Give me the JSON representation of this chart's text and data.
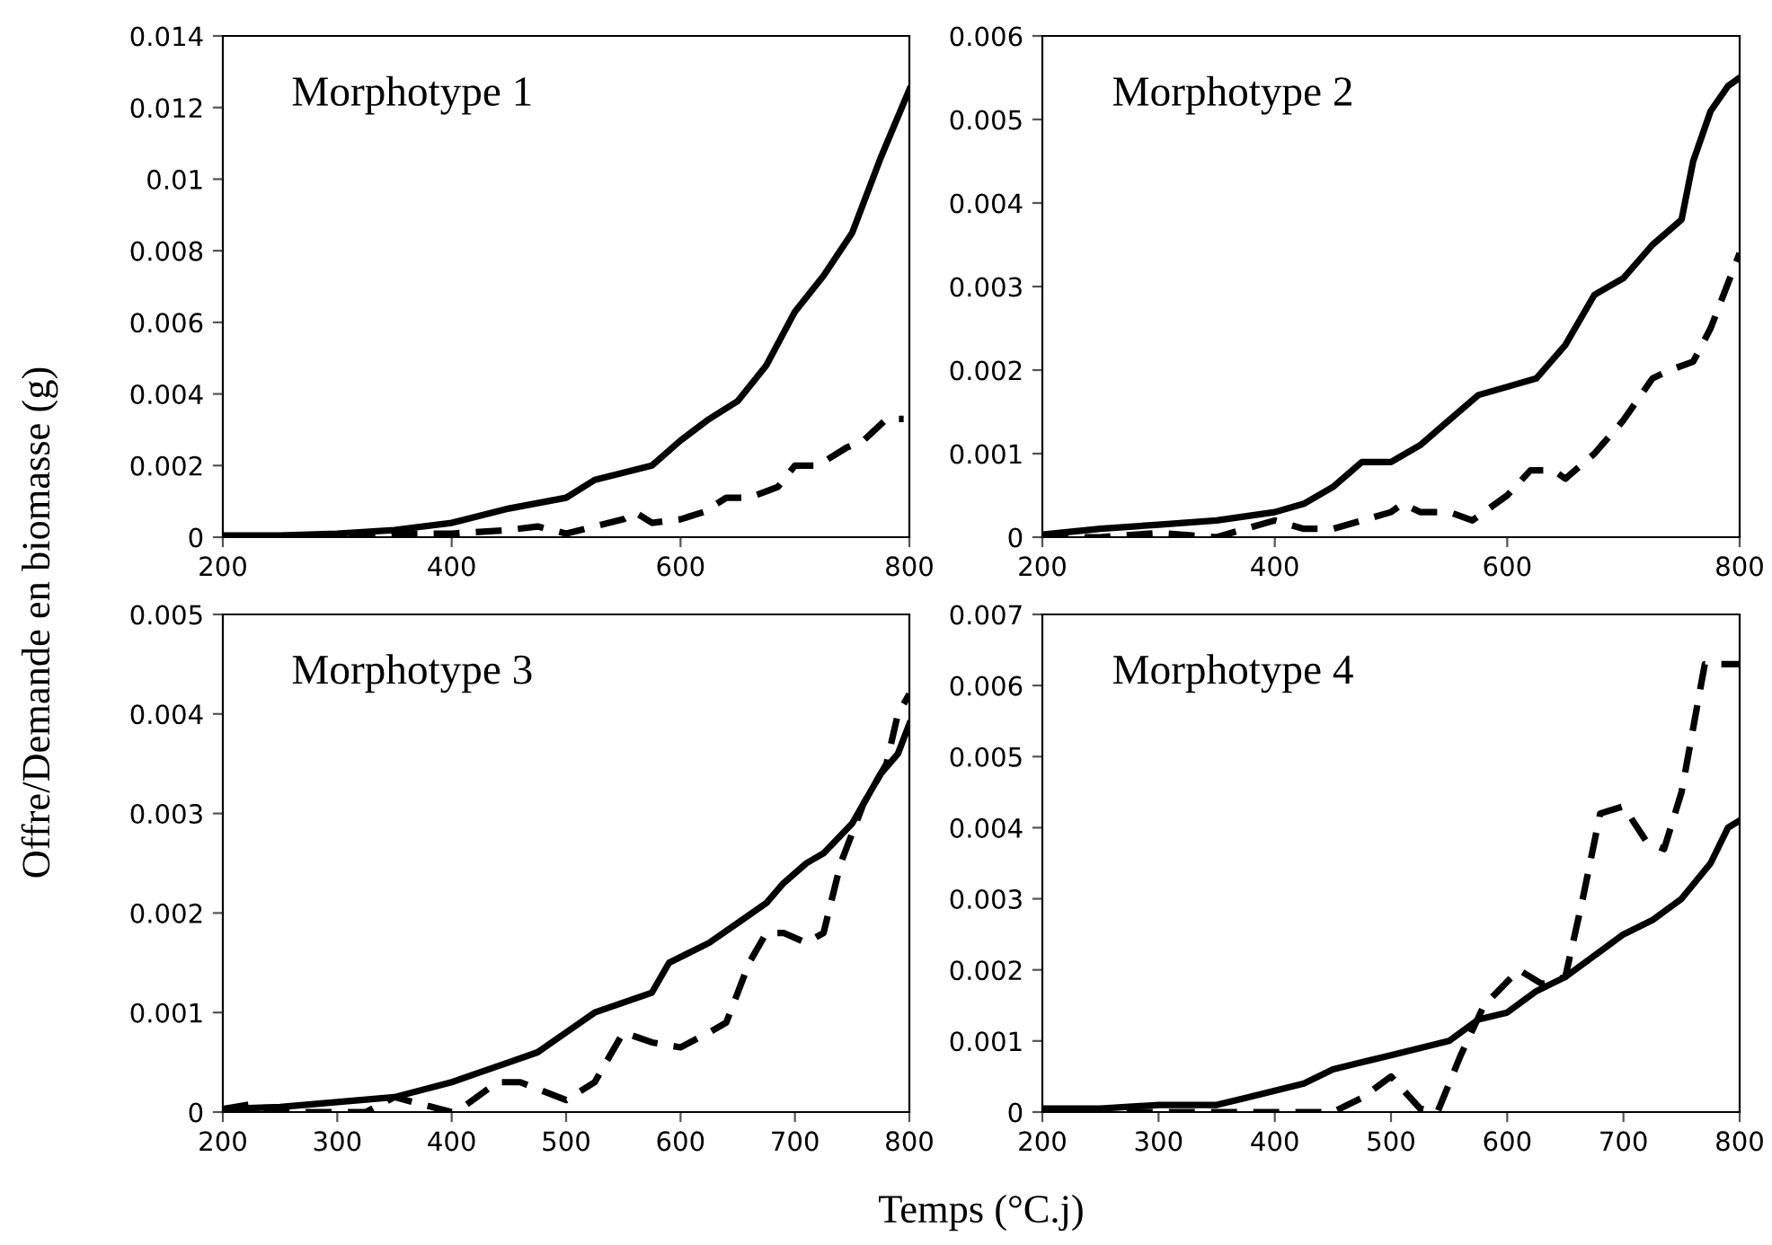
{
  "chart_data": [
    {
      "type": "line",
      "title": "Morphotype 1",
      "ylabel": "Offre/Demande en biomasse (g)",
      "xlim": [
        200,
        800
      ],
      "xticks": [
        200,
        400,
        600,
        800
      ],
      "ylim": [
        0,
        0.014
      ],
      "yticks": [
        0,
        0.002,
        0.004,
        0.006,
        0.008,
        {
          "value": 0.01,
          "label": "0.01"
        },
        0.012,
        0.014
      ],
      "grid": false,
      "legend": false,
      "series": [
        {
          "color": "#000000",
          "line_style": "solid",
          "x": [
            200,
            250,
            300,
            350,
            400,
            450,
            500,
            525,
            550,
            575,
            600,
            625,
            650,
            675,
            700,
            725,
            750,
            775,
            800
          ],
          "values": [
            5e-05,
            5e-05,
            0.0001,
            0.0002,
            0.0004,
            0.0008,
            0.0011,
            0.0016,
            0.0018,
            0.002,
            0.0027,
            0.0033,
            0.0038,
            0.0048,
            0.0063,
            0.0073,
            0.0085,
            0.0106,
            0.0125
          ]
        },
        {
          "color": "#000000",
          "line_style": "dashed",
          "x": [
            200,
            300,
            350,
            400,
            450,
            475,
            500,
            525,
            550,
            560,
            575,
            600,
            620,
            640,
            660,
            685,
            700,
            720,
            745,
            760,
            780,
            795
          ],
          "values": [
            0,
            0,
            0.0001,
            0.0001,
            0.0002,
            0.0003,
            0.0001,
            0.0003,
            0.0005,
            0.0007,
            0.0004,
            0.0005,
            0.0007,
            0.0011,
            0.0011,
            0.0014,
            0.002,
            0.002,
            0.0025,
            0.0027,
            0.0033,
            0.0033
          ]
        }
      ]
    },
    {
      "type": "line",
      "title": "Morphotype 2",
      "xlim": [
        200,
        800
      ],
      "xticks": [
        200,
        400,
        600,
        800
      ],
      "ylim": [
        0,
        0.006
      ],
      "yticks": [
        0,
        0.001,
        0.002,
        0.003,
        0.004,
        0.005,
        0.006
      ],
      "grid": false,
      "legend": false,
      "series": [
        {
          "color": "#000000",
          "line_style": "solid",
          "x": [
            200,
            250,
            300,
            350,
            400,
            425,
            450,
            475,
            500,
            525,
            550,
            575,
            600,
            625,
            650,
            675,
            700,
            725,
            750,
            760,
            775,
            790,
            800
          ],
          "values": [
            3e-05,
            0.0001,
            0.00015,
            0.0002,
            0.0003,
            0.0004,
            0.0006,
            0.0009,
            0.0009,
            0.0011,
            0.0014,
            0.0017,
            0.0018,
            0.0019,
            0.0023,
            0.0029,
            0.0031,
            0.0035,
            0.0038,
            0.0045,
            0.0051,
            0.0054,
            0.0055
          ]
        },
        {
          "color": "#000000",
          "line_style": "dashed",
          "x": [
            200,
            250,
            300,
            350,
            375,
            400,
            425,
            450,
            475,
            500,
            510,
            525,
            550,
            570,
            600,
            620,
            640,
            650,
            675,
            700,
            725,
            740,
            760,
            775,
            800
          ],
          "values": [
            0,
            0,
            5e-05,
            0,
            0.0001,
            0.0002,
            0.0001,
            0.0001,
            0.0002,
            0.0003,
            0.0004,
            0.0003,
            0.0003,
            0.0002,
            0.0005,
            0.0008,
            0.0008,
            0.0007,
            0.001,
            0.0014,
            0.0019,
            0.002,
            0.0021,
            0.0025,
            0.0034
          ]
        }
      ]
    },
    {
      "type": "line",
      "title": "Morphotype 3",
      "xlabel": "Temps (°C.j)",
      "xlim": [
        200,
        800
      ],
      "xticks": [
        200,
        300,
        400,
        500,
        600,
        700,
        800
      ],
      "ylim": [
        0,
        0.005
      ],
      "yticks": [
        0,
        0.001,
        0.002,
        0.003,
        0.004,
        0.005
      ],
      "grid": false,
      "legend": false,
      "series": [
        {
          "color": "#000000",
          "line_style": "solid",
          "x": [
            200,
            250,
            300,
            350,
            400,
            425,
            450,
            475,
            500,
            525,
            550,
            575,
            590,
            625,
            650,
            675,
            690,
            710,
            725,
            750,
            775,
            790,
            800
          ],
          "values": [
            3e-05,
            5e-05,
            0.0001,
            0.00015,
            0.0003,
            0.0004,
            0.0005,
            0.0006,
            0.0008,
            0.001,
            0.0011,
            0.0012,
            0.0015,
            0.0017,
            0.0019,
            0.0021,
            0.0023,
            0.0025,
            0.0026,
            0.0029,
            0.0034,
            0.0036,
            0.0039
          ]
        },
        {
          "color": "#000000",
          "line_style": "dashed",
          "x": [
            200,
            225,
            250,
            300,
            325,
            350,
            400,
            410,
            440,
            460,
            500,
            525,
            550,
            575,
            600,
            625,
            640,
            660,
            675,
            690,
            710,
            725,
            740,
            760,
            780,
            790,
            800
          ],
          "values": [
            3e-05,
            8e-05,
            0,
            0,
            0,
            0.00015,
            0,
            5e-05,
            0.0003,
            0.0003,
            0.00012,
            0.0003,
            0.0008,
            0.0007,
            0.00065,
            0.0008,
            0.0009,
            0.0015,
            0.0018,
            0.0018,
            0.0017,
            0.0018,
            0.0025,
            0.0031,
            0.0035,
            0.004,
            0.0042
          ]
        }
      ]
    },
    {
      "type": "line",
      "title": "Morphotype 4",
      "xlim": [
        200,
        800
      ],
      "xticks": [
        200,
        300,
        400,
        500,
        600,
        700,
        800
      ],
      "ylim": [
        0,
        0.007
      ],
      "yticks": [
        0,
        0.001,
        0.002,
        0.003,
        0.004,
        0.005,
        0.006,
        0.007
      ],
      "grid": false,
      "legend": false,
      "series": [
        {
          "color": "#000000",
          "line_style": "solid",
          "x": [
            200,
            250,
            300,
            350,
            375,
            400,
            425,
            450,
            475,
            500,
            525,
            550,
            575,
            600,
            625,
            650,
            675,
            700,
            725,
            750,
            775,
            790,
            800
          ],
          "values": [
            5e-05,
            5e-05,
            0.0001,
            0.0001,
            0.0002,
            0.0003,
            0.0004,
            0.0006,
            0.0007,
            0.0008,
            0.0009,
            0.001,
            0.0013,
            0.0014,
            0.0017,
            0.0019,
            0.0022,
            0.0025,
            0.0027,
            0.003,
            0.0035,
            0.004,
            0.0041
          ]
        },
        {
          "color": "#000000",
          "line_style": "dashed",
          "x": [
            200,
            275,
            300,
            400,
            450,
            475,
            500,
            525,
            540,
            560,
            580,
            610,
            630,
            650,
            665,
            680,
            700,
            720,
            735,
            750,
            770,
            800
          ],
          "values": [
            0,
            0,
            0,
            0,
            0,
            0.0002,
            0.0005,
            5e-05,
            0,
            0.0008,
            0.0015,
            0.002,
            0.0018,
            0.0019,
            0.003,
            0.0042,
            0.0043,
            0.0038,
            0.0037,
            0.0045,
            0.0063,
            0.0063
          ]
        }
      ]
    }
  ]
}
